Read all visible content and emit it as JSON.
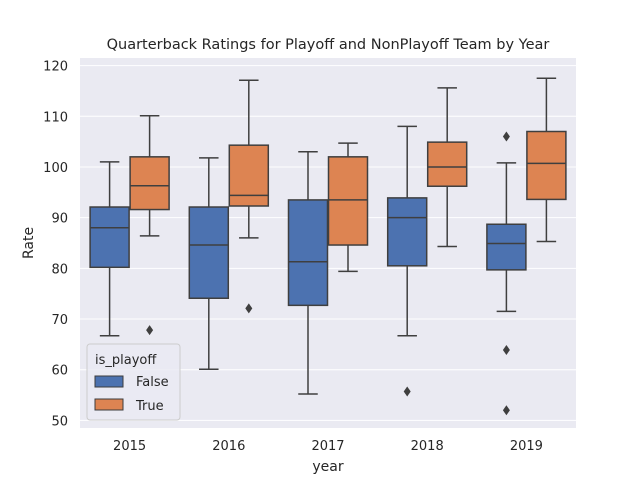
{
  "chart_data": {
    "type": "box",
    "title": "Quarterback Ratings for Playoff and NonPlayoff Team by Year",
    "xlabel": "year",
    "ylabel": "Rate",
    "categories": [
      "2015",
      "2016",
      "2017",
      "2018",
      "2019"
    ],
    "ylim": [
      48.5,
      121.5
    ],
    "yticks": [
      50,
      60,
      70,
      80,
      90,
      100,
      110,
      120
    ],
    "grid": true,
    "legend": {
      "title": "is_playoff",
      "placement": "lower-left"
    },
    "series": [
      {
        "name": "False",
        "color": "#4c72b0",
        "boxes": [
          {
            "whislo": 66.7,
            "q1": 80.2,
            "med": 88.0,
            "q3": 92.1,
            "whishi": 101.0,
            "fliers": []
          },
          {
            "whislo": 60.1,
            "q1": 74.1,
            "med": 84.6,
            "q3": 92.1,
            "whishi": 101.8,
            "fliers": []
          },
          {
            "whislo": 55.2,
            "q1": 72.7,
            "med": 81.3,
            "q3": 93.5,
            "whishi": 103.0,
            "fliers": []
          },
          {
            "whislo": 66.7,
            "q1": 80.5,
            "med": 90.0,
            "q3": 93.9,
            "whishi": 108.0,
            "fliers": [
              55.7
            ]
          },
          {
            "whislo": 71.5,
            "q1": 79.7,
            "med": 84.9,
            "q3": 88.7,
            "whishi": 100.8,
            "fliers": [
              106.0,
              63.9,
              52.0
            ]
          }
        ]
      },
      {
        "name": "True",
        "color": "#dd8452",
        "boxes": [
          {
            "whislo": 86.4,
            "q1": 91.6,
            "med": 96.3,
            "q3": 102.0,
            "whishi": 110.1,
            "fliers": [
              67.8
            ]
          },
          {
            "whislo": 86.0,
            "q1": 92.3,
            "med": 94.4,
            "q3": 104.3,
            "whishi": 117.1,
            "fliers": [
              72.1
            ]
          },
          {
            "whislo": 79.4,
            "q1": 84.6,
            "med": 93.5,
            "q3": 102.0,
            "whishi": 104.7,
            "fliers": []
          },
          {
            "whislo": 84.3,
            "q1": 96.2,
            "med": 100.0,
            "q3": 104.9,
            "whishi": 115.6,
            "fliers": []
          },
          {
            "whislo": 85.3,
            "q1": 93.6,
            "med": 100.7,
            "q3": 107.0,
            "whishi": 117.5,
            "fliers": []
          }
        ]
      }
    ]
  }
}
